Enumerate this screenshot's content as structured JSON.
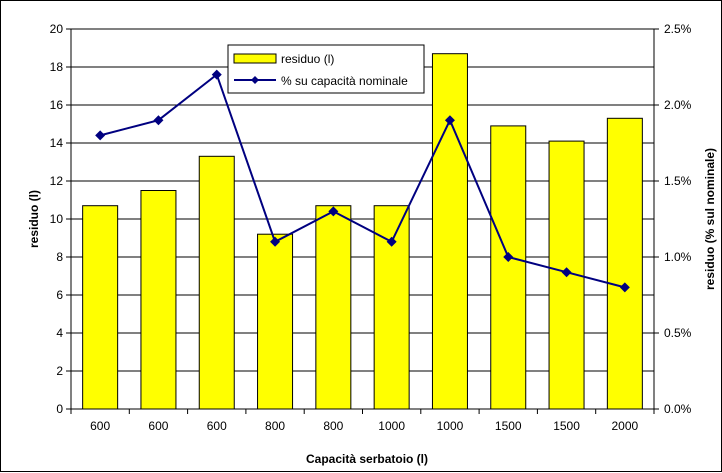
{
  "chart_data": {
    "type": "bar",
    "categories": [
      "600",
      "600",
      "600",
      "800",
      "800",
      "1000",
      "1000",
      "1500",
      "1500",
      "2000"
    ],
    "series": [
      {
        "name": "residuo (l)",
        "type": "bar",
        "axis": "left",
        "color": "#FFFF00",
        "values": [
          10.7,
          11.5,
          13.3,
          9.2,
          10.7,
          10.7,
          18.7,
          14.9,
          14.1,
          15.3
        ]
      },
      {
        "name": "% su capacità nominale",
        "type": "line",
        "axis": "right",
        "color": "#000080",
        "values": [
          1.8,
          1.9,
          2.2,
          1.1,
          1.3,
          1.1,
          1.9,
          1.0,
          0.9,
          0.8
        ]
      }
    ],
    "xlabel": "Capacità serbatoio (l)",
    "ylabel": "residuo (l)",
    "y2label": "residuo (% sul nominale)",
    "ylim": [
      0,
      20
    ],
    "y2lim": [
      0,
      2.5
    ],
    "yticks": [
      "0",
      "2",
      "4",
      "6",
      "8",
      "10",
      "12",
      "14",
      "16",
      "18",
      "20"
    ],
    "y2ticks": [
      "0.0%",
      "0.5%",
      "1.0%",
      "1.5%",
      "2.0%",
      "2.5%"
    ],
    "grid": "horizontal",
    "legend": "top-center"
  }
}
